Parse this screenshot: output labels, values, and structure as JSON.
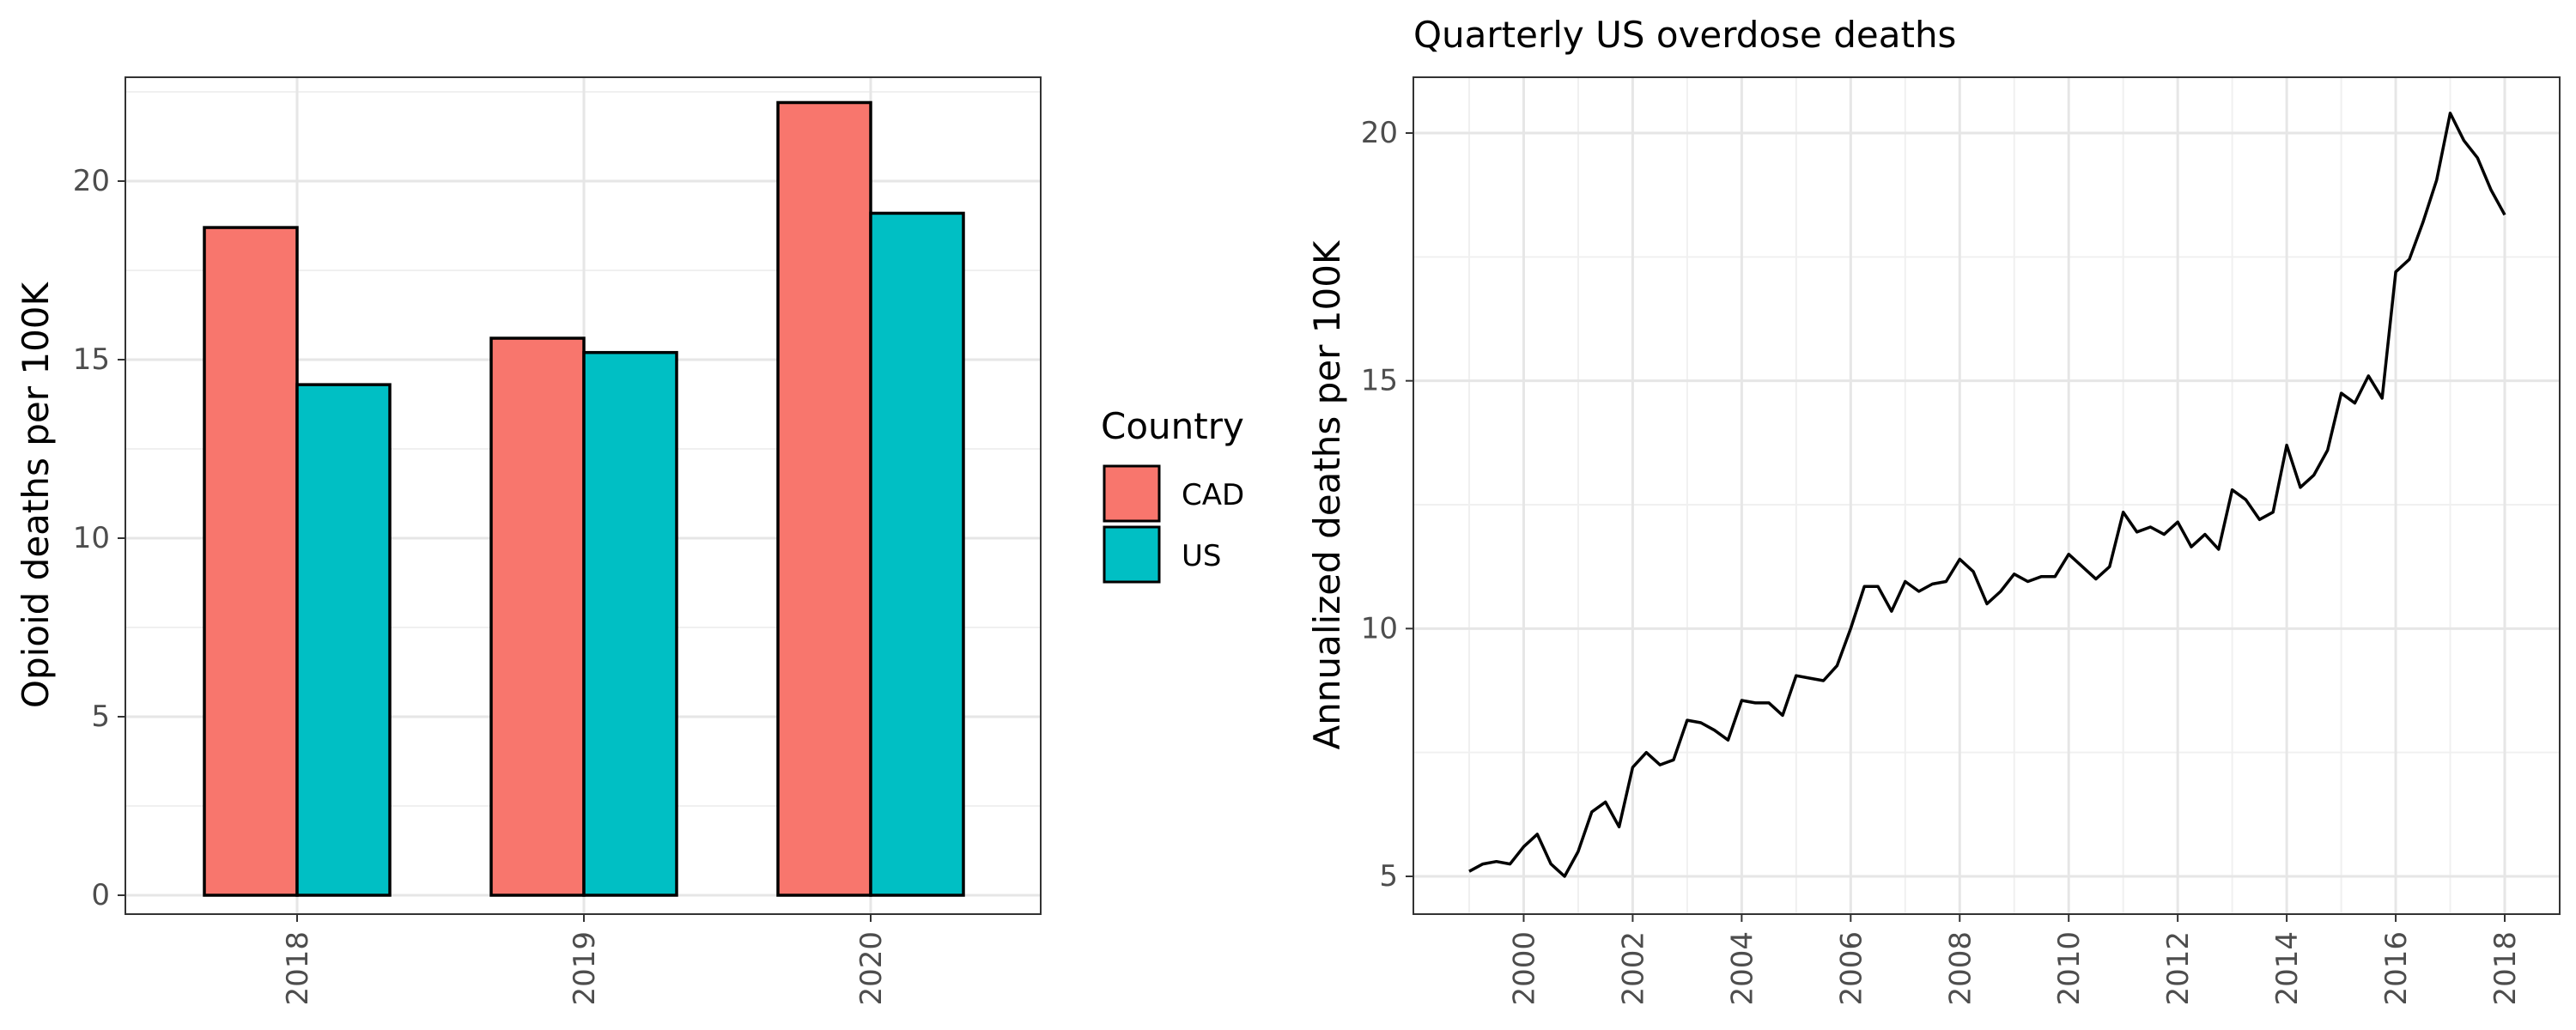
{
  "chart_data": [
    {
      "type": "bar",
      "title": "",
      "xlabel": "",
      "ylabel": "Opioid deaths per 100K",
      "categories": [
        "2018",
        "2019",
        "2020"
      ],
      "ylim": [
        0,
        23
      ],
      "yticks": [
        0,
        5,
        10,
        15,
        20
      ],
      "grid": true,
      "legend": {
        "title": "Country",
        "placement": "right"
      },
      "series": [
        {
          "name": "CAD",
          "color": "#F8766D",
          "values": [
            18.7,
            15.6,
            22.2
          ]
        },
        {
          "name": "US",
          "color": "#00BFC4",
          "values": [
            14.3,
            15.2,
            19.1
          ]
        }
      ]
    },
    {
      "type": "line",
      "title": "Quarterly US overdose deaths",
      "xlabel": "",
      "ylabel": "Annualized deaths per 100K",
      "xlim": [
        1999.0,
        2018.0
      ],
      "ylim": [
        5,
        21
      ],
      "xticks": [
        2000,
        2002,
        2004,
        2006,
        2008,
        2010,
        2012,
        2014,
        2016,
        2018
      ],
      "yticks": [
        5,
        10,
        15,
        20
      ],
      "grid": true,
      "color": "#000000",
      "x": [
        1999.0,
        1999.25,
        1999.5,
        1999.75,
        2000.0,
        2000.25,
        2000.5,
        2000.75,
        2001.0,
        2001.25,
        2001.5,
        2001.75,
        2002.0,
        2002.25,
        2002.5,
        2002.75,
        2003.0,
        2003.25,
        2003.5,
        2003.75,
        2004.0,
        2004.25,
        2004.5,
        2004.75,
        2005.0,
        2005.25,
        2005.5,
        2005.75,
        2006.0,
        2006.25,
        2006.5,
        2006.75,
        2007.0,
        2007.25,
        2007.5,
        2007.75,
        2008.0,
        2008.25,
        2008.5,
        2008.75,
        2009.0,
        2009.25,
        2009.5,
        2009.75,
        2010.0,
        2010.25,
        2010.5,
        2010.75,
        2011.0,
        2011.25,
        2011.5,
        2011.75,
        2012.0,
        2012.25,
        2012.5,
        2012.75,
        2013.0,
        2013.25,
        2013.5,
        2013.75,
        2014.0,
        2014.25,
        2014.5,
        2014.75,
        2015.0,
        2015.25,
        2015.5,
        2015.75,
        2016.0,
        2016.25,
        2016.5,
        2016.75,
        2017.0,
        2017.25,
        2017.5,
        2017.75,
        2018.0
      ],
      "values": [
        5.1,
        5.25,
        5.3,
        5.25,
        5.6,
        5.85,
        5.25,
        5.0,
        5.5,
        6.3,
        6.5,
        6.0,
        7.2,
        7.5,
        7.25,
        7.35,
        8.15,
        8.1,
        7.95,
        7.75,
        8.55,
        8.5,
        8.5,
        8.25,
        9.05,
        9.0,
        8.95,
        9.25,
        10.0,
        10.85,
        10.85,
        10.35,
        10.95,
        10.75,
        10.9,
        10.95,
        11.4,
        11.15,
        10.5,
        10.75,
        11.1,
        10.95,
        11.05,
        11.05,
        11.5,
        11.25,
        11.0,
        11.25,
        12.35,
        11.95,
        12.05,
        11.9,
        12.15,
        11.65,
        11.9,
        11.6,
        12.8,
        12.6,
        12.2,
        12.35,
        13.7,
        12.85,
        13.1,
        13.6,
        14.75,
        14.55,
        15.1,
        14.65,
        17.2,
        17.45,
        18.2,
        19.05,
        20.4,
        19.85,
        19.5,
        18.85,
        18.35
      ]
    }
  ]
}
